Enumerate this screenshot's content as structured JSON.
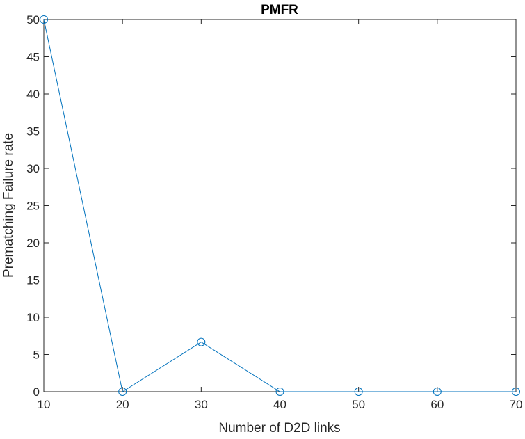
{
  "chart_data": {
    "type": "line",
    "title": "PMFR",
    "xlabel": "Number of D2D links",
    "ylabel": "Prematching Failure rate",
    "xlim": [
      10,
      70
    ],
    "ylim": [
      0,
      50
    ],
    "xticks": [
      10,
      20,
      30,
      40,
      50,
      60,
      70
    ],
    "yticks": [
      0,
      5,
      10,
      15,
      20,
      25,
      30,
      35,
      40,
      45,
      50
    ],
    "grid": false,
    "legend": "none",
    "series": [
      {
        "color": "#0072BD",
        "marker": "circle-open",
        "x": [
          10,
          20,
          30,
          40,
          50,
          60,
          70
        ],
        "y": [
          50,
          0,
          6.67,
          0,
          0,
          0,
          0
        ]
      }
    ]
  }
}
